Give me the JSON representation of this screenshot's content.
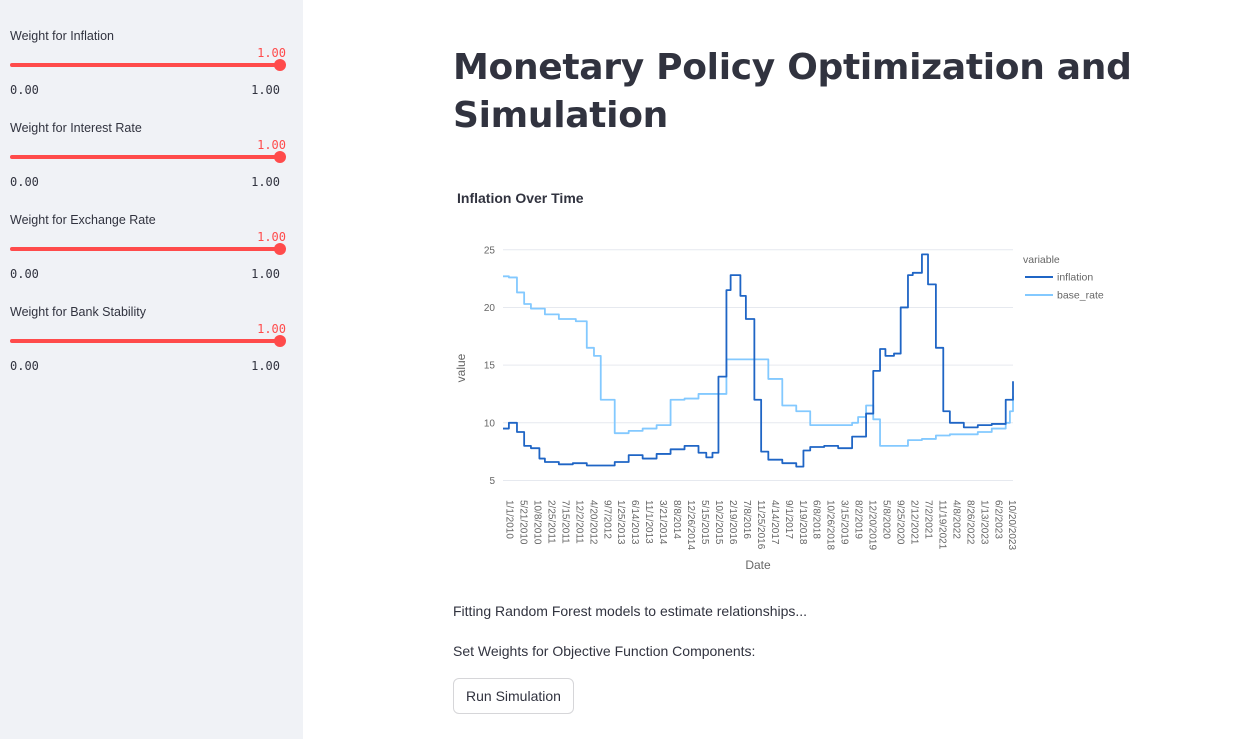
{
  "sidebar": {
    "sliders": [
      {
        "label": "Weight for Inflation",
        "value": "1.00",
        "min": "0.00",
        "max": "1.00",
        "fraction": 1.0
      },
      {
        "label": "Weight for Interest Rate",
        "value": "1.00",
        "min": "0.00",
        "max": "1.00",
        "fraction": 1.0
      },
      {
        "label": "Weight for Exchange Rate",
        "value": "1.00",
        "min": "0.00",
        "max": "1.00",
        "fraction": 1.0
      },
      {
        "label": "Weight for Bank Stability",
        "value": "1.00",
        "min": "0.00",
        "max": "1.00",
        "fraction": 1.0
      }
    ]
  },
  "main": {
    "title": "Monetary Policy Optimization and Simulation",
    "status_text": "Fitting Random Forest models to estimate relationships...",
    "weights_text": "Set Weights for Objective Function Components:",
    "run_button": "Run Simulation"
  },
  "colors": {
    "accent": "#ff4b4b",
    "inflation": "#1f65c5",
    "base_rate": "#83c9ff"
  },
  "chart_data": {
    "type": "line",
    "title": "Inflation Over Time",
    "xlabel": "Date",
    "ylabel": "value",
    "legend_title": "variable",
    "legend_position": "top-right",
    "ylim": [
      4,
      25.5
    ],
    "yticks": [
      5,
      10,
      15,
      20,
      25
    ],
    "x_tick_labels": [
      "1/1/2010",
      "5/21/2010",
      "10/8/2010",
      "2/25/2011",
      "7/15/2011",
      "12/2/2011",
      "4/20/2012",
      "9/7/2012",
      "1/25/2013",
      "6/14/2013",
      "11/1/2013",
      "3/21/2014",
      "8/8/2014",
      "12/26/2014",
      "5/15/2015",
      "10/2/2015",
      "2/19/2016",
      "7/8/2016",
      "11/25/2016",
      "4/14/2017",
      "9/1/2017",
      "1/19/2018",
      "6/8/2018",
      "10/26/2018",
      "3/15/2019",
      "8/2/2019",
      "12/20/2019",
      "5/8/2020",
      "9/25/2020",
      "2/12/2021",
      "7/2/2021",
      "11/19/2021",
      "4/8/2022",
      "8/26/2022",
      "1/13/2023",
      "6/2/2023",
      "10/20/2023"
    ],
    "grid": true,
    "series": [
      {
        "name": "inflation",
        "x": [
          "1/1/2010",
          "3/1/2010",
          "5/21/2010",
          "8/1/2010",
          "10/8/2010",
          "1/1/2011",
          "2/25/2011",
          "7/15/2011",
          "12/2/2011",
          "4/20/2012",
          "9/7/2012",
          "1/25/2013",
          "6/14/2013",
          "11/1/2013",
          "3/21/2014",
          "8/8/2014",
          "12/26/2014",
          "5/15/2015",
          "8/1/2015",
          "10/2/2015",
          "12/1/2015",
          "2/19/2016",
          "4/1/2016",
          "7/8/2016",
          "9/1/2016",
          "11/25/2016",
          "2/1/2017",
          "4/14/2017",
          "9/1/2017",
          "1/19/2018",
          "4/1/2018",
          "6/8/2018",
          "10/26/2018",
          "3/15/2019",
          "8/2/2019",
          "12/20/2019",
          "3/1/2020",
          "5/8/2020",
          "7/1/2020",
          "9/25/2020",
          "12/1/2020",
          "2/12/2021",
          "4/1/2021",
          "7/2/2021",
          "9/1/2021",
          "11/19/2021",
          "2/1/2022",
          "4/8/2022",
          "8/26/2022",
          "1/13/2023",
          "6/2/2023",
          "10/20/2023",
          "1/1/2024"
        ],
        "y": [
          9.5,
          10,
          9.2,
          8,
          7.8,
          6.9,
          6.6,
          6.4,
          6.5,
          6.3,
          6.3,
          6.6,
          7.2,
          6.9,
          7.3,
          7.7,
          8,
          7.4,
          7,
          7.4,
          14,
          21.5,
          22.8,
          21,
          19,
          12,
          7.5,
          6.8,
          6.5,
          6.2,
          7.6,
          7.9,
          8,
          7.8,
          8.8,
          10.8,
          14.5,
          16.4,
          15.8,
          16,
          20,
          22.8,
          23,
          24.6,
          22,
          16.5,
          11,
          10,
          9.6,
          9.8,
          9.9,
          12,
          13.6
        ]
      },
      {
        "name": "base_rate",
        "x": [
          "1/1/2010",
          "3/1/2010",
          "5/21/2010",
          "8/1/2010",
          "10/8/2010",
          "2/25/2011",
          "7/15/2011",
          "12/2/2011",
          "1/1/2012",
          "4/20/2012",
          "7/1/2012",
          "9/7/2012",
          "1/25/2013",
          "6/14/2013",
          "11/1/2013",
          "3/21/2014",
          "8/8/2014",
          "12/26/2014",
          "5/15/2015",
          "10/2/2015",
          "2/19/2016",
          "7/8/2016",
          "11/25/2016",
          "2/1/2017",
          "4/14/2017",
          "9/1/2017",
          "1/19/2018",
          "6/8/2018",
          "10/26/2018",
          "3/15/2019",
          "8/2/2019",
          "10/1/2019",
          "12/20/2019",
          "3/1/2020",
          "5/8/2020",
          "9/25/2020",
          "2/12/2021",
          "7/2/2021",
          "11/19/2021",
          "4/8/2022",
          "8/26/2022",
          "1/13/2023",
          "6/2/2023",
          "10/20/2023",
          "12/1/2023",
          "1/1/2024"
        ],
        "y": [
          22.7,
          22.6,
          21.3,
          20.3,
          19.9,
          19.4,
          19,
          19,
          18.8,
          16.5,
          15.8,
          12,
          9.1,
          9.3,
          9.5,
          9.8,
          12,
          12.1,
          12.5,
          12.5,
          15.5,
          15.5,
          15.5,
          15.5,
          13.8,
          11.5,
          11,
          9.8,
          9.8,
          9.8,
          10,
          10.5,
          11.5,
          10.3,
          8,
          8,
          8.5,
          8.6,
          8.9,
          9,
          9,
          9.2,
          9.5,
          10,
          11,
          12.3
        ]
      }
    ]
  }
}
